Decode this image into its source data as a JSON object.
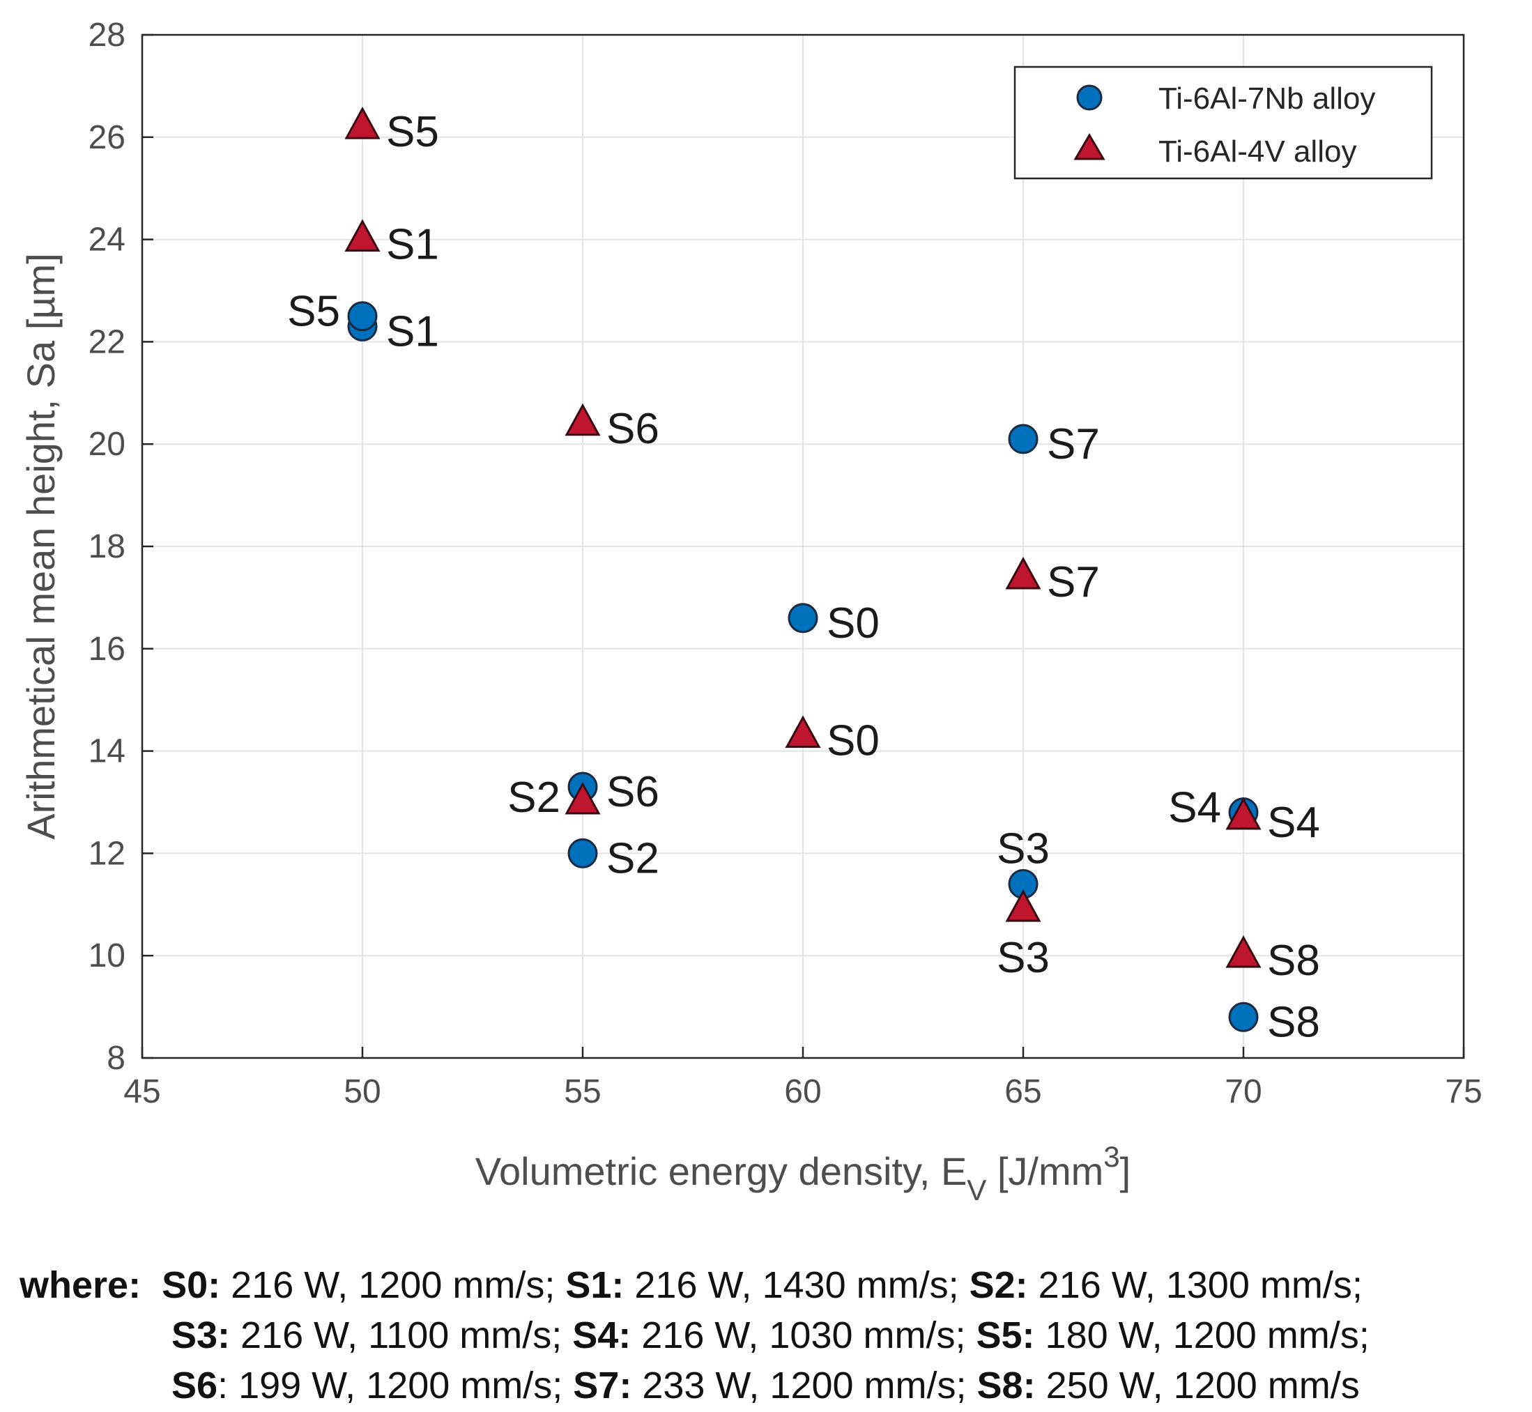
{
  "chart_data": {
    "type": "scatter",
    "xlabel": "Volumetric energy density, E",
    "xlabel_subscript": "V",
    "xlabel_units": " [J/mm",
    "xlabel_superscript": "3",
    "xlabel_close": "]",
    "ylabel": "Arithmetical mean height, Sa [µm]",
    "xlim": [
      45,
      75
    ],
    "ylim": [
      8,
      28
    ],
    "xticks": [
      45,
      50,
      55,
      60,
      65,
      70,
      75
    ],
    "yticks": [
      8,
      10,
      12,
      14,
      16,
      18,
      20,
      22,
      24,
      26,
      28
    ],
    "grid": true,
    "legend_position": "top-right",
    "series": [
      {
        "name": "Ti-6Al-7Nb alloy",
        "marker": "circle",
        "color": "#0072BD",
        "points": [
          {
            "x": 50,
            "y": 22.3,
            "label": "S1",
            "label_side": "right"
          },
          {
            "x": 50,
            "y": 22.5,
            "label": "S5",
            "label_side": "left"
          },
          {
            "x": 55,
            "y": 13.3,
            "label": "S6",
            "label_side": "right"
          },
          {
            "x": 55,
            "y": 12.0,
            "label": "S2",
            "label_side": "right"
          },
          {
            "x": 60,
            "y": 16.6,
            "label": "S0",
            "label_side": "right"
          },
          {
            "x": 65,
            "y": 20.1,
            "label": "S7",
            "label_side": "right"
          },
          {
            "x": 65,
            "y": 11.4,
            "label": "S3",
            "label_side": "above"
          },
          {
            "x": 70,
            "y": 12.8,
            "label": "S4",
            "label_side": "left"
          },
          {
            "x": 70,
            "y": 8.8,
            "label": "S8",
            "label_side": "right"
          }
        ]
      },
      {
        "name": "Ti-6Al-4V alloy",
        "marker": "triangle",
        "color": "#C0152F",
        "points": [
          {
            "x": 50,
            "y": 26.2,
            "label": "S5",
            "label_side": "right"
          },
          {
            "x": 50,
            "y": 24.0,
            "label": "S1",
            "label_side": "right"
          },
          {
            "x": 55,
            "y": 20.4,
            "label": "S6",
            "label_side": "right"
          },
          {
            "x": 55,
            "y": 13.0,
            "label": "S2",
            "label_side": "left"
          },
          {
            "x": 60,
            "y": 14.3,
            "label": "S0",
            "label_side": "right"
          },
          {
            "x": 65,
            "y": 17.4,
            "label": "S7",
            "label_side": "right"
          },
          {
            "x": 65,
            "y": 10.9,
            "label": "S3",
            "label_side": "below"
          },
          {
            "x": 70,
            "y": 12.7,
            "label": "S4",
            "label_side": "right"
          },
          {
            "x": 70,
            "y": 10.0,
            "label": "S8",
            "label_side": "right"
          }
        ]
      }
    ]
  },
  "caption": {
    "where": "where:",
    "items": [
      {
        "key": "S0:",
        "value": " 216 W, 1200 mm/s; ",
        "key_bold": true
      },
      {
        "key": "S1:",
        "value": " 216 W, 1430 mm/s; ",
        "key_bold": true
      },
      {
        "key": "S2:",
        "value": " 216 W, 1300 mm/s;",
        "key_bold": true
      },
      {
        "key": "S3:",
        "value": " 216 W, 1100 mm/s; ",
        "key_bold": true
      },
      {
        "key": "S4:",
        "value": " 216 W, 1030 mm/s; ",
        "key_bold": true
      },
      {
        "key": "S5:",
        "value": " 180 W, 1200 mm/s;",
        "key_bold": true
      },
      {
        "key": "S6",
        "value": ": 199 W, 1200 mm/s; ",
        "key_bold": true
      },
      {
        "key": "S7:",
        "value": " 233 W, 1200 mm/s; ",
        "key_bold": true
      },
      {
        "key": "S8:",
        "value": " 250 W, 1200 mm/s",
        "key_bold": true
      }
    ]
  }
}
